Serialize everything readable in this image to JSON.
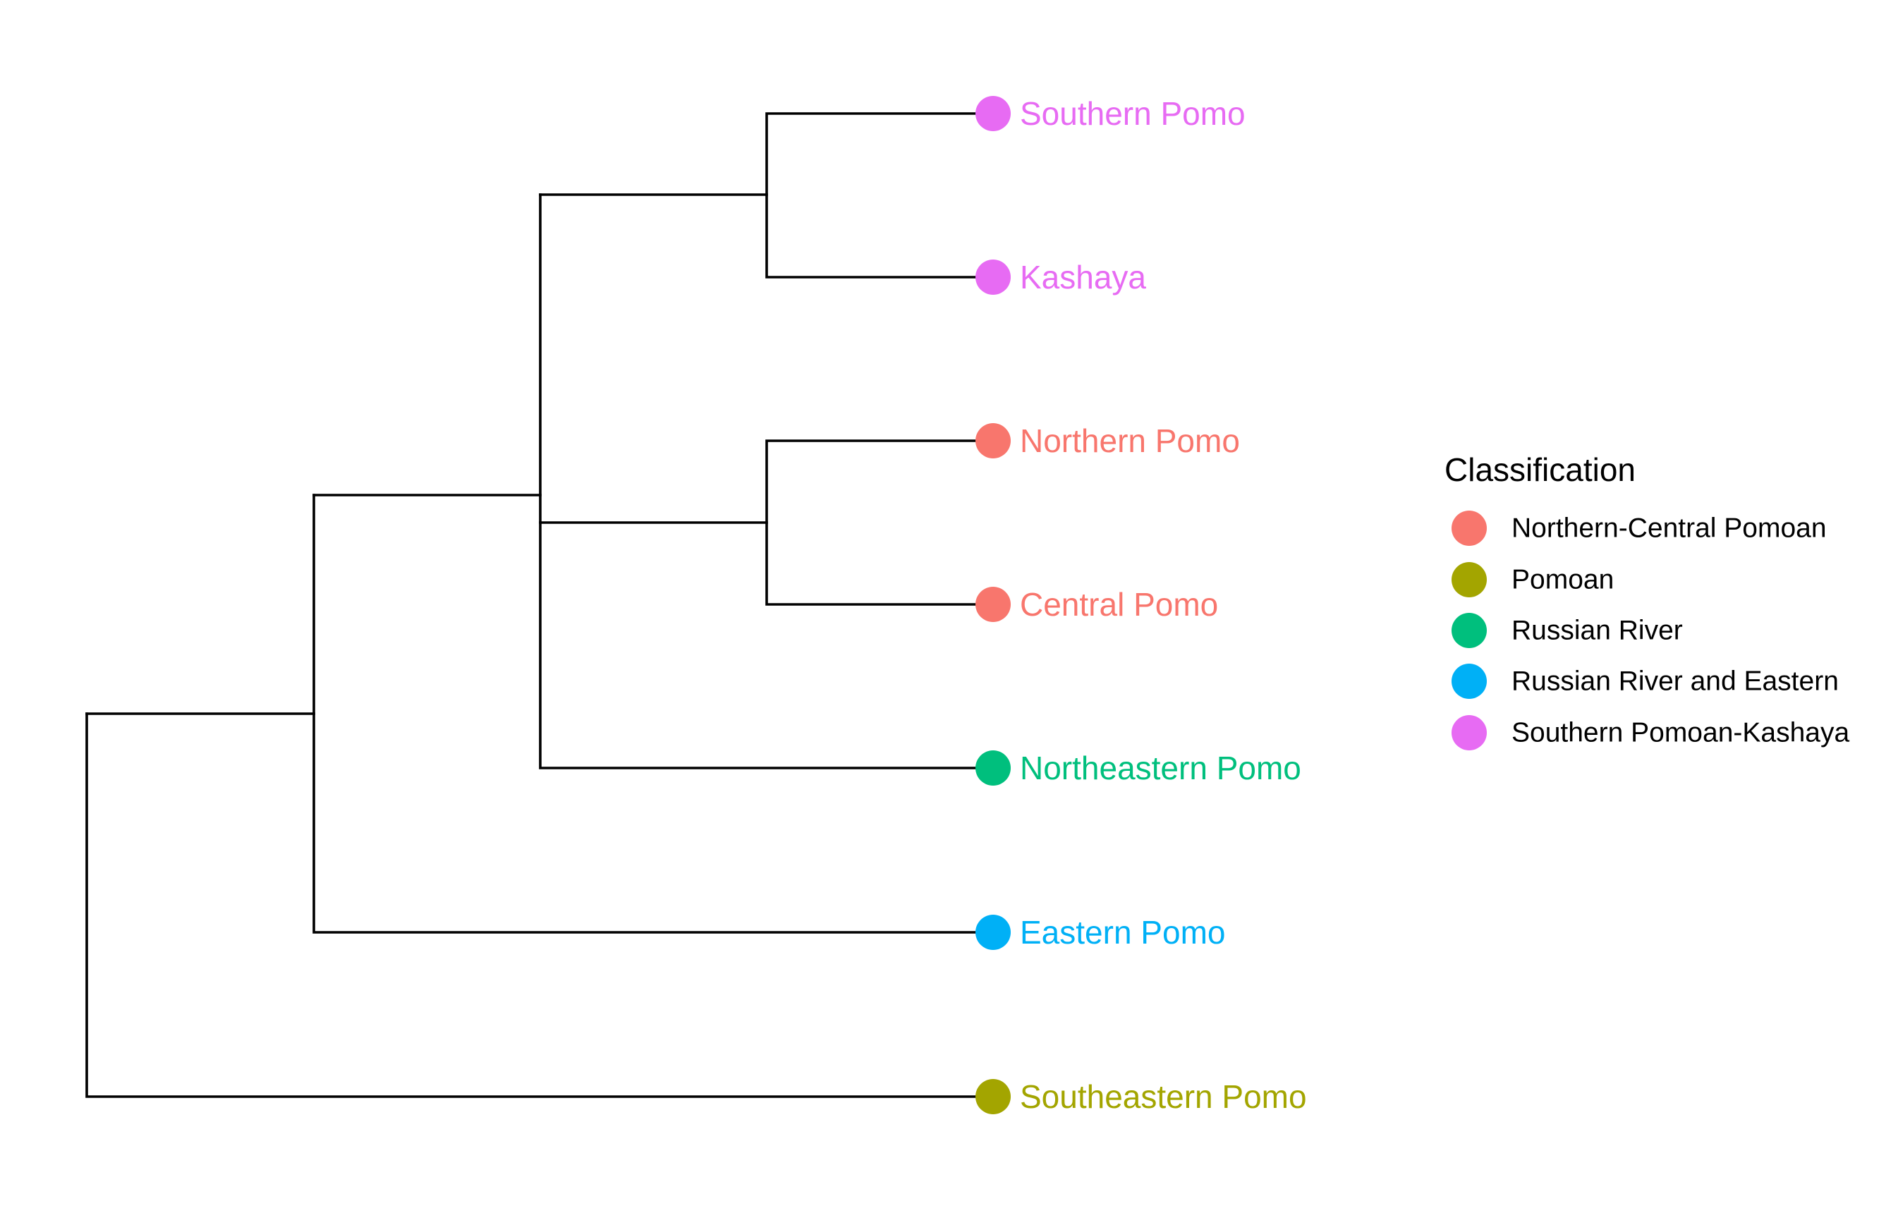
{
  "tree": {
    "tips": [
      {
        "id": "southern",
        "label": "Southern Pomo",
        "class_index": 4
      },
      {
        "id": "kashaya",
        "label": "Kashaya",
        "class_index": 4
      },
      {
        "id": "northern",
        "label": "Northern Pomo",
        "class_index": 0
      },
      {
        "id": "central",
        "label": "Central Pomo",
        "class_index": 0
      },
      {
        "id": "northeastern",
        "label": "Northeastern Pomo",
        "class_index": 2
      },
      {
        "id": "eastern",
        "label": "Eastern Pomo",
        "class_index": 3
      },
      {
        "id": "southeastern",
        "label": "Southeastern Pomo",
        "class_index": 1
      }
    ],
    "topology": [
      [
        [
          [
            "Southern Pomo",
            "Kashaya"
          ],
          [
            "Northern Pomo",
            "Central Pomo"
          ],
          "Northeastern Pomo"
        ],
        "Eastern Pomo"
      ],
      "Southeastern Pomo"
    ]
  },
  "legend": {
    "title": "Classification",
    "entries": [
      {
        "label": "Northern-Central Pomoan",
        "color": "#F8766D"
      },
      {
        "label": "Pomoan",
        "color": "#A3A500"
      },
      {
        "label": "Russian River",
        "color": "#00BF7D"
      },
      {
        "label": "Russian River and Eastern",
        "color": "#00B0F6"
      },
      {
        "label": "Southern Pomoan-Kashaya",
        "color": "#E76BF3"
      }
    ]
  }
}
